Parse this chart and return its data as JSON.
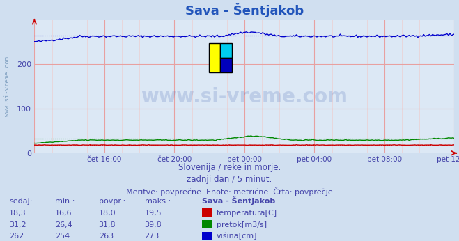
{
  "title": "Sava - Šentjakob",
  "subtitle1": "Slovenija / reke in morje.",
  "subtitle2": "zadnji dan / 5 minut.",
  "subtitle3": "Meritve: povprečne  Enote: metrične  Črta: povprečje",
  "bg_color": "#d0dff0",
  "plot_bg_color": "#dce8f5",
  "grid_color_major": "#e8a0a0",
  "grid_color_minor": "#f0c8c8",
  "text_color": "#4444aa",
  "title_color": "#2255bb",
  "ylim": [
    0,
    300
  ],
  "yticks": [
    0,
    100,
    200
  ],
  "xtick_labels": [
    "čet 16:00",
    "čet 20:00",
    "pet 00:00",
    "pet 04:00",
    "pet 08:00",
    "pet 12:00"
  ],
  "n_points": 288,
  "visina_avg": 263,
  "visina_min": 254,
  "visina_max": 273,
  "pretok_avg": 31.8,
  "pretok_min": 26.4,
  "pretok_max": 39.8,
  "temp_avg": 18.0,
  "temp_min": 16.6,
  "temp_max": 19.5,
  "line_colors": [
    "#cc0000",
    "#008800",
    "#0000cc"
  ],
  "legend_labels": [
    "temperatura[C]",
    "pretok[m3/s]",
    "višina[cm]"
  ],
  "table_headers": [
    "sedaj:",
    "min.:",
    "povpr.:",
    "maks.:",
    "Sava - Šentjakob"
  ],
  "table_rows": [
    [
      "18,3",
      "16,6",
      "18,0",
      "19,5"
    ],
    [
      "31,2",
      "26,4",
      "31,8",
      "39,8"
    ],
    [
      "262",
      "254",
      "263",
      "273"
    ]
  ],
  "watermark": "www.si-vreme.com",
  "watermark_color": "#3355aa",
  "ylabel_text": "www.si-vreme.com",
  "ylabel_color": "#7799bb",
  "logo_colors": [
    "#ffff00",
    "#00ccff",
    "#0000aa"
  ]
}
